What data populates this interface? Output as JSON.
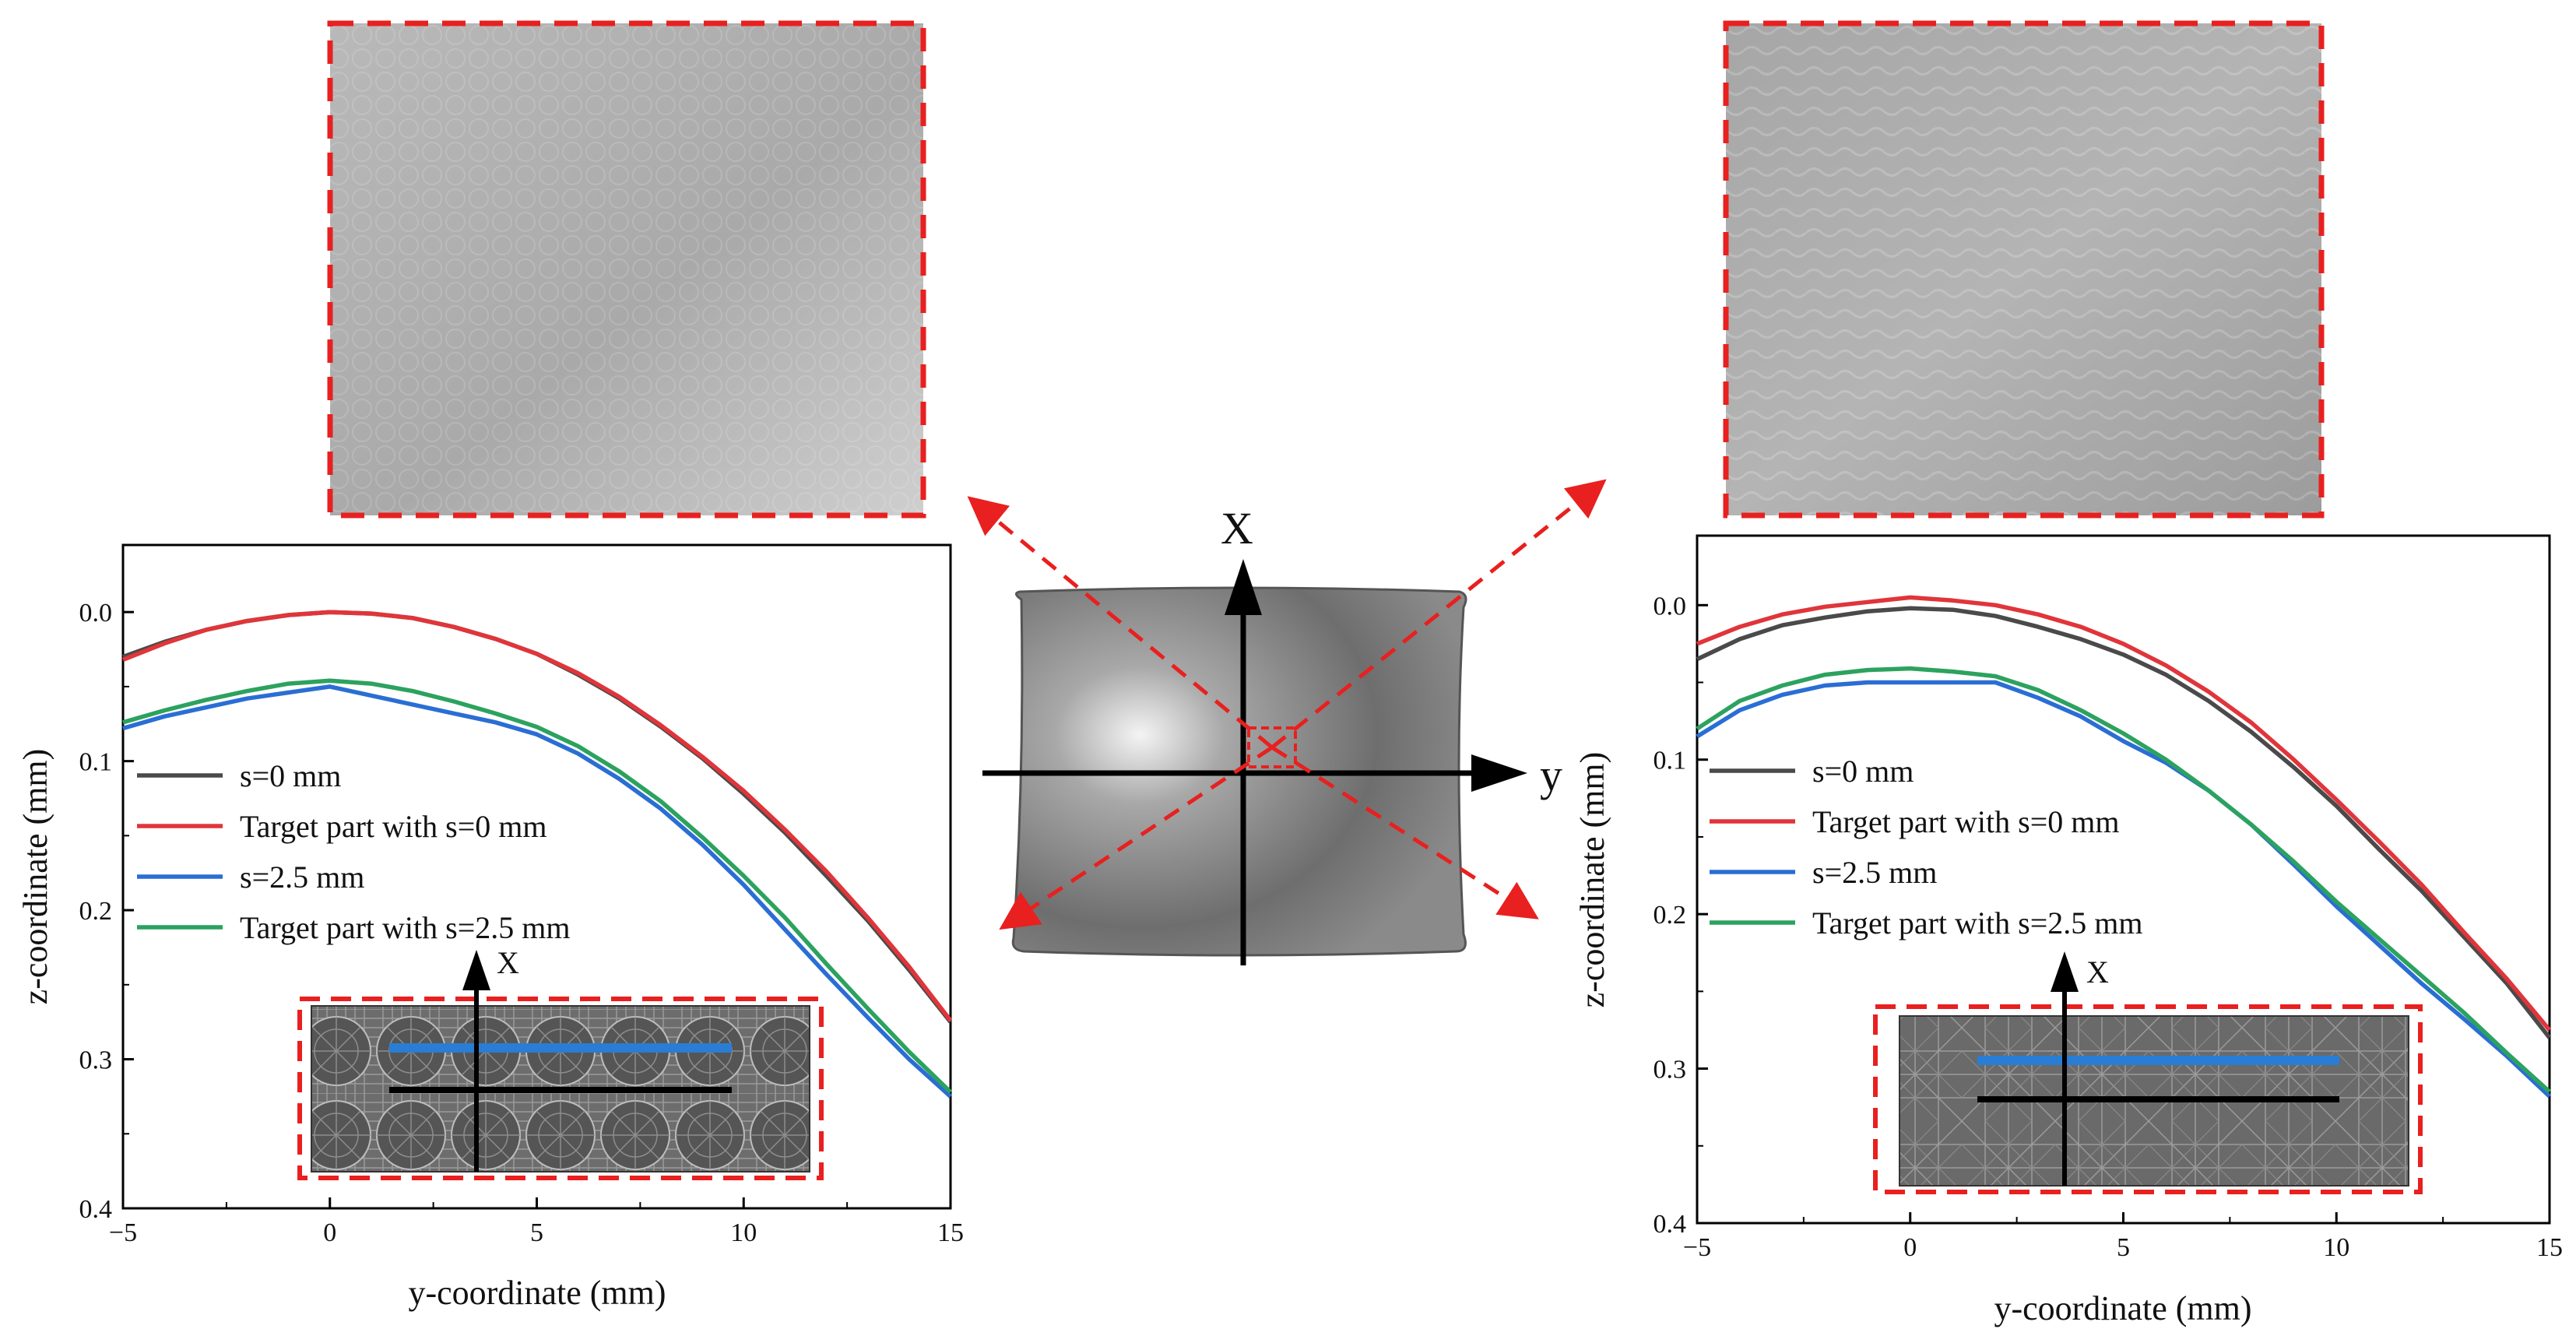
{
  "chart_data": [
    {
      "type": "line",
      "title": "",
      "xlabel": "y-coordinate (mm)",
      "ylabel": "z-coordinate (mm)",
      "xlim": [
        -5,
        15
      ],
      "ylim": [
        0.4,
        -0.045
      ],
      "y_axis_inverted": true,
      "xticks": [
        "−5",
        "0",
        "5",
        "10",
        "15"
      ],
      "yticks": [
        "0.0",
        "0.1",
        "0.2",
        "0.3",
        "0.4"
      ],
      "legend_position": "middle-left",
      "inset_axis_label": "X",
      "series": [
        {
          "name": "s=0 mm",
          "color": "#4a4a4a",
          "x": [
            -5,
            -4,
            -3,
            -2,
            -1,
            0,
            1,
            2,
            3,
            4,
            5,
            6,
            7,
            8,
            9,
            10,
            11,
            12,
            13,
            14,
            15
          ],
          "y": [
            0.03,
            0.02,
            0.012,
            0.006,
            0.002,
            0.0,
            0.001,
            0.004,
            0.01,
            0.018,
            0.028,
            0.042,
            0.058,
            0.077,
            0.098,
            0.122,
            0.148,
            0.177,
            0.207,
            0.24,
            0.275
          ]
        },
        {
          "name": "Target part with s=0 mm",
          "color": "#e0353a",
          "x": [
            -5,
            -4,
            -3,
            -2,
            -1,
            0,
            1,
            2,
            3,
            4,
            5,
            6,
            7,
            8,
            9,
            10,
            11,
            12,
            13,
            14,
            15
          ],
          "y": [
            0.032,
            0.021,
            0.012,
            0.006,
            0.002,
            0.0,
            0.001,
            0.004,
            0.01,
            0.018,
            0.028,
            0.041,
            0.057,
            0.076,
            0.097,
            0.12,
            0.146,
            0.174,
            0.205,
            0.238,
            0.274
          ]
        },
        {
          "name": "s=2.5 mm",
          "color": "#2a6ed4",
          "x": [
            -5,
            -4,
            -3,
            -2,
            -1,
            0,
            1,
            2,
            3,
            4,
            5,
            6,
            7,
            8,
            9,
            10,
            11,
            12,
            13,
            14,
            15
          ],
          "y": [
            0.078,
            0.07,
            0.064,
            0.058,
            0.054,
            0.05,
            0.056,
            0.062,
            0.068,
            0.074,
            0.082,
            0.095,
            0.112,
            0.132,
            0.156,
            0.183,
            0.213,
            0.243,
            0.272,
            0.3,
            0.325
          ]
        },
        {
          "name": "Target part with s=2.5 mm",
          "color": "#2ca25f",
          "x": [
            -5,
            -4,
            -3,
            -2,
            -1,
            0,
            1,
            2,
            3,
            4,
            5,
            6,
            7,
            8,
            9,
            10,
            11,
            12,
            13,
            14,
            15
          ],
          "y": [
            0.074,
            0.066,
            0.059,
            0.053,
            0.048,
            0.046,
            0.048,
            0.053,
            0.06,
            0.068,
            0.077,
            0.09,
            0.107,
            0.127,
            0.151,
            0.177,
            0.205,
            0.236,
            0.266,
            0.295,
            0.322
          ]
        }
      ]
    },
    {
      "type": "line",
      "title": "",
      "xlabel": "y-coordinate (mm)",
      "ylabel": "z-coordinate (mm)",
      "xlim": [
        -5,
        15
      ],
      "ylim": [
        0.4,
        -0.045
      ],
      "y_axis_inverted": true,
      "xticks": [
        "−5",
        "0",
        "5",
        "10",
        "15"
      ],
      "yticks": [
        "0.0",
        "0.1",
        "0.2",
        "0.3",
        "0.4"
      ],
      "legend_position": "middle-left",
      "inset_axis_label": "X",
      "series": [
        {
          "name": "s=0 mm",
          "color": "#4a4a4a",
          "x": [
            -5,
            -4,
            -3,
            -2,
            -1,
            0,
            1,
            2,
            3,
            4,
            5,
            6,
            7,
            8,
            9,
            10,
            11,
            12,
            13,
            14,
            15
          ],
          "y": [
            0.035,
            0.022,
            0.013,
            0.008,
            0.004,
            0.002,
            0.003,
            0.007,
            0.014,
            0.022,
            0.032,
            0.045,
            0.062,
            0.082,
            0.105,
            0.13,
            0.158,
            0.185,
            0.215,
            0.245,
            0.28
          ]
        },
        {
          "name": "Target part with s=0 mm",
          "color": "#e0353a",
          "x": [
            -5,
            -4,
            -3,
            -2,
            -1,
            0,
            1,
            2,
            3,
            4,
            5,
            6,
            7,
            8,
            9,
            10,
            11,
            12,
            13,
            14,
            15
          ],
          "y": [
            0.025,
            0.014,
            0.006,
            0.001,
            -0.002,
            -0.005,
            -0.003,
            0.0,
            0.006,
            0.014,
            0.025,
            0.039,
            0.056,
            0.076,
            0.1,
            0.126,
            0.153,
            0.181,
            0.212,
            0.242,
            0.275
          ]
        },
        {
          "name": "s=2.5 mm",
          "color": "#2a6ed4",
          "x": [
            -5,
            -4,
            -3,
            -2,
            -1,
            0,
            1,
            2,
            3,
            4,
            5,
            6,
            7,
            8,
            9,
            10,
            11,
            12,
            13,
            14,
            15
          ],
          "y": [
            0.085,
            0.068,
            0.058,
            0.052,
            0.05,
            0.05,
            0.05,
            0.05,
            0.06,
            0.072,
            0.088,
            0.102,
            0.12,
            0.142,
            0.168,
            0.195,
            0.22,
            0.245,
            0.268,
            0.292,
            0.318
          ]
        },
        {
          "name": "Target part with s=2.5 mm",
          "color": "#2ca25f",
          "x": [
            -5,
            -4,
            -3,
            -2,
            -1,
            0,
            1,
            2,
            3,
            4,
            5,
            6,
            7,
            8,
            9,
            10,
            11,
            12,
            13,
            14,
            15
          ],
          "y": [
            0.08,
            0.062,
            0.052,
            0.045,
            0.042,
            0.041,
            0.043,
            0.046,
            0.055,
            0.068,
            0.083,
            0.1,
            0.12,
            0.142,
            0.166,
            0.192,
            0.216,
            0.24,
            0.264,
            0.29,
            0.315
          ]
        }
      ]
    }
  ],
  "center_model": {
    "axis_x_label": "X",
    "axis_y_label": "y"
  },
  "colors": {
    "callout_red": "#e8201f",
    "axis_black": "#000000"
  }
}
